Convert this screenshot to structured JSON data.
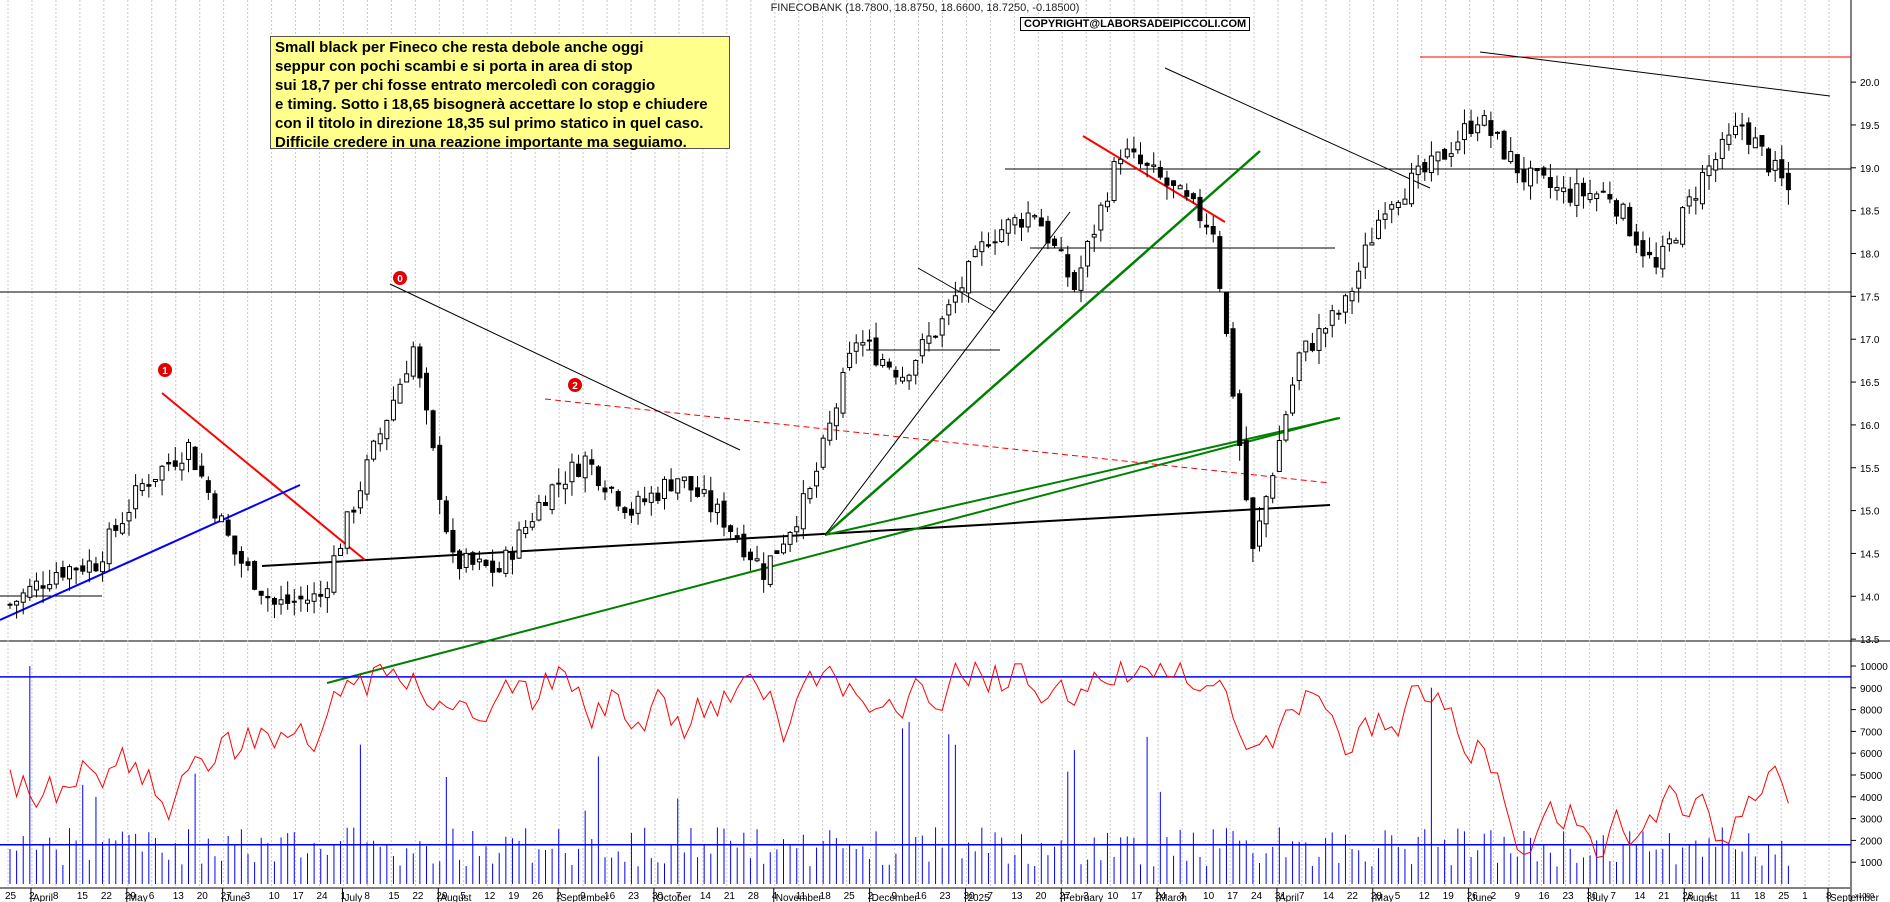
{
  "header": {
    "ticker_line": "FINECOBANK (18.7800, 18.8750, 18.6600, 18.7250, -0.18500)",
    "copyright": "COPYRIGHT@LABORSADEIPICCOLI.COM"
  },
  "note": {
    "lines": [
      "Small black per Fineco che resta debole anche oggi",
      "seppur con pochi scambi e si porta in area di stop",
      "sui 18,7 per chi fosse entrato mercoledì con coraggio",
      "e timing. Sotto i 18,65 bisognerà accettare lo stop e chiudere",
      "con il titolo in direzione 18,35 sul primo statico in quel caso.",
      "Difficile credere in una reazione importante ma seguiamo."
    ]
  },
  "colors": {
    "candle": "#000000",
    "support": "#000000",
    "green_trend": "#008000",
    "red_trend": "#ff0000",
    "blue_trend": "#0000ff",
    "volume": "#0000ff",
    "oscillator": "#ff0000",
    "grid": "#c8c8c8"
  },
  "chart_data": [
    {
      "type": "candlestick",
      "title": "FINECOBANK (18.7800, 18.8750, 18.6600, 18.7250, -0.18500)",
      "y_ticks": [
        "13.5",
        "14.0",
        "14.5",
        "15.0",
        "15.5",
        "16.0",
        "16.5",
        "17.0",
        "17.5",
        "18.0",
        "18.5",
        "19.0",
        "19.5",
        "20.0"
      ],
      "ylim": [
        13.0,
        20.2
      ],
      "last": {
        "open": 18.78,
        "high": 18.875,
        "low": 18.66,
        "close": 18.725,
        "change": -0.185
      },
      "series": [
        {
          "name": "price",
          "points": [
            [
              "Apr 1",
              13.9
            ],
            [
              "Apr 15",
              14.3
            ],
            [
              "Apr 29",
              14.4
            ],
            [
              "May 13",
              15.3
            ],
            [
              "May 17",
              15.75
            ],
            [
              "Jun 3",
              14.5
            ],
            [
              "Jun 17",
              13.9
            ],
            [
              "Jul 1",
              14.0
            ],
            [
              "Jul 15",
              15.5
            ],
            [
              "Jul 22",
              16.9
            ],
            [
              "Aug 1",
              14.4
            ],
            [
              "Aug 12",
              14.3
            ],
            [
              "Sep 2",
              15.2
            ],
            [
              "Sep 16",
              15.6
            ],
            [
              "Sep 30",
              15.0
            ],
            [
              "Oct 14",
              15.4
            ],
            [
              "Oct 28",
              14.9
            ],
            [
              "Nov 11",
              14.3
            ],
            [
              "Nov 25",
              15.2
            ],
            [
              "Dec 9",
              17.0
            ],
            [
              "Dec 23",
              16.6
            ],
            [
              "Jan 6",
              17.2
            ],
            [
              "Jan 20",
              18.2
            ],
            [
              "Feb 3",
              18.5
            ],
            [
              "Feb 17",
              17.6
            ],
            [
              "Mar 3",
              19.2
            ],
            [
              "Mar 17",
              18.8
            ],
            [
              "Apr 1",
              18.3
            ],
            [
              "Apr 7",
              14.5
            ],
            [
              "Apr 14",
              16.8
            ],
            [
              "Apr 28",
              17.4
            ],
            [
              "May 12",
              18.6
            ],
            [
              "May 26",
              19.0
            ],
            [
              "Jun 9",
              19.6
            ],
            [
              "Jun 23",
              18.9
            ],
            [
              "Jul 7",
              18.7
            ],
            [
              "Jul 21",
              18.7
            ],
            [
              "Aug 1",
              17.8
            ],
            [
              "Aug 11",
              18.9
            ],
            [
              "Aug 21",
              19.5
            ],
            [
              "Aug 29",
              18.73
            ]
          ]
        }
      ],
      "annotations": [
        "0",
        "1",
        "2"
      ],
      "xaxis_numbers": [
        "25",
        "2",
        "8",
        "15",
        "22",
        "29",
        "6",
        "13",
        "20",
        "27",
        "3",
        "10",
        "17",
        "24",
        "1",
        "8",
        "15",
        "22",
        "29",
        "5",
        "12",
        "19",
        "26",
        "2",
        "9",
        "16",
        "23",
        "30",
        "7",
        "14",
        "21",
        "28",
        "4",
        "11",
        "18",
        "25",
        "2",
        "9",
        "16",
        "23",
        "30",
        "7",
        "13",
        "20",
        "27",
        "3",
        "10",
        "17",
        "24",
        "3",
        "10",
        "17",
        "24",
        "31",
        "7",
        "14",
        "22",
        "28",
        "5",
        "12",
        "19",
        "26",
        "2",
        "9",
        "16",
        "23",
        "30",
        "7",
        "14",
        "21",
        "28",
        "4",
        "11",
        "18",
        "25",
        "1",
        "8"
      ],
      "xaxis_months": [
        "April",
        "May",
        "June",
        "July",
        "August",
        "September",
        "October",
        "November",
        "December",
        "2025",
        "February",
        "March",
        "April",
        "May",
        "June",
        "July",
        "August",
        "September"
      ]
    },
    {
      "type": "bar",
      "name": "volume",
      "y_ticks": [
        "1000",
        "2000",
        "3000",
        "4000",
        "5000",
        "6000",
        "7000",
        "8000",
        "9000",
        "10000"
      ],
      "units": "x1000",
      "ylim": [
        0,
        10800
      ],
      "reference_lines": [
        9500,
        1800
      ]
    },
    {
      "type": "line",
      "name": "oscillator",
      "ylim": [
        0,
        10800
      ]
    }
  ]
}
